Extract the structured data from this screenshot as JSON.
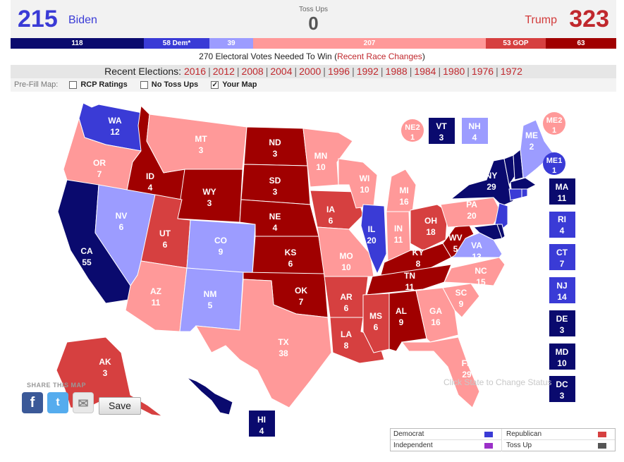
{
  "header": {
    "biden_ev": "215",
    "biden_name": "Biden",
    "toss_label": "Toss Ups",
    "toss_ev": "0",
    "trump_name": "Trump",
    "trump_ev": "323"
  },
  "bar": [
    {
      "label": "118",
      "color": "#0a0a6e"
    },
    {
      "label": "58 Dem*",
      "color": "#3a3bd6"
    },
    {
      "label": "39",
      "color": "#9c9cff"
    },
    {
      "label": "207",
      "color": "#ff9999"
    },
    {
      "label": "53 GOP",
      "color": "#d64040"
    },
    {
      "label": "63",
      "color": "#a00000"
    }
  ],
  "needed_text": "270 Electoral Votes Needed To Win (",
  "recent_changes": "Recent Race Changes",
  "needed_close": ")",
  "elections": {
    "label": "Recent Elections:",
    "years": [
      "2016",
      "2012",
      "2008",
      "2004",
      "2000",
      "1996",
      "1992",
      "1988",
      "1984",
      "1980",
      "1976",
      "1972"
    ]
  },
  "prefill": {
    "label": "Pre-Fill Map:",
    "options": [
      {
        "label": "RCP Ratings",
        "checked": false
      },
      {
        "label": "No Toss Ups",
        "checked": false
      },
      {
        "label": "Your Map",
        "checked": true
      }
    ]
  },
  "colors": {
    "solid_dem": "#0a0a6e",
    "likely_dem": "#3a3bd6",
    "lean_dem": "#9c9cff",
    "lean_gop": "#ff9999",
    "likely_gop": "#d64040",
    "solid_gop": "#a00000"
  },
  "states": {
    "WA": {
      "abbr": "WA",
      "ev": "12"
    },
    "OR": {
      "abbr": "OR",
      "ev": "7"
    },
    "CA": {
      "abbr": "CA",
      "ev": "55"
    },
    "ID": {
      "abbr": "ID",
      "ev": "4"
    },
    "NV": {
      "abbr": "NV",
      "ev": "6"
    },
    "MT": {
      "abbr": "MT",
      "ev": "3"
    },
    "WY": {
      "abbr": "WY",
      "ev": "3"
    },
    "UT": {
      "abbr": "UT",
      "ev": "6"
    },
    "AZ": {
      "abbr": "AZ",
      "ev": "11"
    },
    "CO": {
      "abbr": "CO",
      "ev": "9"
    },
    "NM": {
      "abbr": "NM",
      "ev": "5"
    },
    "ND": {
      "abbr": "ND",
      "ev": "3"
    },
    "SD": {
      "abbr": "SD",
      "ev": "3"
    },
    "NE": {
      "abbr": "NE",
      "ev": "4"
    },
    "KS": {
      "abbr": "KS",
      "ev": "6"
    },
    "OK": {
      "abbr": "OK",
      "ev": "7"
    },
    "TX": {
      "abbr": "TX",
      "ev": "38"
    },
    "MN": {
      "abbr": "MN",
      "ev": "10"
    },
    "IA": {
      "abbr": "IA",
      "ev": "6"
    },
    "MO": {
      "abbr": "MO",
      "ev": "10"
    },
    "AR": {
      "abbr": "AR",
      "ev": "6"
    },
    "LA": {
      "abbr": "LA",
      "ev": "8"
    },
    "WI": {
      "abbr": "WI",
      "ev": "10"
    },
    "IL": {
      "abbr": "IL",
      "ev": "20"
    },
    "MI": {
      "abbr": "MI",
      "ev": "16"
    },
    "IN": {
      "abbr": "IN",
      "ev": "11"
    },
    "OH": {
      "abbr": "OH",
      "ev": "18"
    },
    "KY": {
      "abbr": "KY",
      "ev": "8"
    },
    "TN": {
      "abbr": "TN",
      "ev": "11"
    },
    "MS": {
      "abbr": "MS",
      "ev": "6"
    },
    "AL": {
      "abbr": "AL",
      "ev": "9"
    },
    "GA": {
      "abbr": "GA",
      "ev": "16"
    },
    "FL": {
      "abbr": "FL",
      "ev": "29"
    },
    "SC": {
      "abbr": "SC",
      "ev": "9"
    },
    "NC": {
      "abbr": "NC",
      "ev": "15"
    },
    "VA": {
      "abbr": "VA",
      "ev": "13"
    },
    "WV": {
      "abbr": "WV",
      "ev": "5"
    },
    "PA": {
      "abbr": "PA",
      "ev": "20"
    },
    "NY": {
      "abbr": "NY",
      "ev": "29"
    },
    "ME": {
      "abbr": "ME",
      "ev": "2"
    },
    "AK": {
      "abbr": "AK",
      "ev": "3"
    },
    "HI": {
      "abbr": "HI",
      "ev": "4"
    },
    "VT": {
      "abbr": "VT",
      "ev": "3"
    },
    "NH": {
      "abbr": "NH",
      "ev": "4"
    },
    "NE2": {
      "abbr": "NE2",
      "ev": "1"
    },
    "ME2": {
      "abbr": "ME2",
      "ev": "1"
    },
    "ME1": {
      "abbr": "ME1",
      "ev": "1"
    },
    "MA": {
      "abbr": "MA",
      "ev": "11"
    },
    "RI": {
      "abbr": "RI",
      "ev": "4"
    },
    "CT": {
      "abbr": "CT",
      "ev": "7"
    },
    "NJ": {
      "abbr": "NJ",
      "ev": "14"
    },
    "DE": {
      "abbr": "DE",
      "ev": "3"
    },
    "MD": {
      "abbr": "MD",
      "ev": "10"
    },
    "DC": {
      "abbr": "DC",
      "ev": "3"
    }
  },
  "click_status": "Click State to Change Status",
  "share_label": "SHARE THIS MAP",
  "save_label": "Save",
  "legend": {
    "democrat": "Democrat",
    "republican": "Republican",
    "independent": "Independent",
    "tossup": "Toss Up",
    "dem_color": "#3a3bd6",
    "gop_color": "#d64040",
    "ind_color": "#9b30c8",
    "toss_color": "#555555"
  }
}
